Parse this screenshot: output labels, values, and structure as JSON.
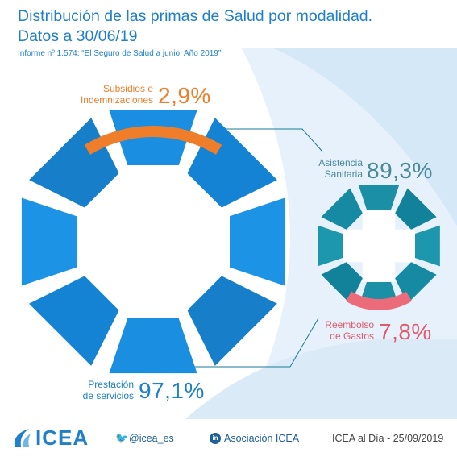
{
  "title_line1": "Distribución de las primas de Salud por modalidad.",
  "title_line2": "Datos a 30/06/19",
  "subtitle": "Informe nº 1.574: “El Seguro de Salud a junio. Año 2019”",
  "colors": {
    "title": "#1f7fc8",
    "prestacion": "#1a8ee0",
    "subsidios": "#f07d2a",
    "asistencia": "#1a8fa6",
    "reembolso": "#ec6b7a"
  },
  "chart_data": [
    {
      "type": "pie",
      "categories": [
        "Prestación de servicios",
        "Subsidios e Indemnizaciones"
      ],
      "values": [
        97.1,
        2.9
      ],
      "labels": [
        "97,1%",
        "2,9%"
      ]
    },
    {
      "type": "pie",
      "categories": [
        "Asistencia Sanitaria",
        "Reembolso de Gastos"
      ],
      "values": [
        89.3,
        7.8
      ],
      "labels": [
        "89,3%",
        "7,8%"
      ]
    }
  ],
  "labels": {
    "subsidios_l1": "Subsidios e",
    "subsidios_l2": "Indemnizaciones",
    "subsidios_value": "2,9%",
    "asistencia_l1": "Asistencia",
    "asistencia_l2": "Sanitaria",
    "asistencia_value": "89,3%",
    "reembolso_l1": "Reembolso",
    "reembolso_l2": "de Gastos",
    "reembolso_value": "7,8%",
    "prestacion_l1": "Prestación",
    "prestacion_l2": "de servicios",
    "prestacion_value": "97,1%"
  },
  "footer": {
    "logo": "ICEA",
    "twitter": "@icea_es",
    "linkedin": "Asociación ICEA",
    "date": "ICEA al Día - 25/09/2019"
  }
}
